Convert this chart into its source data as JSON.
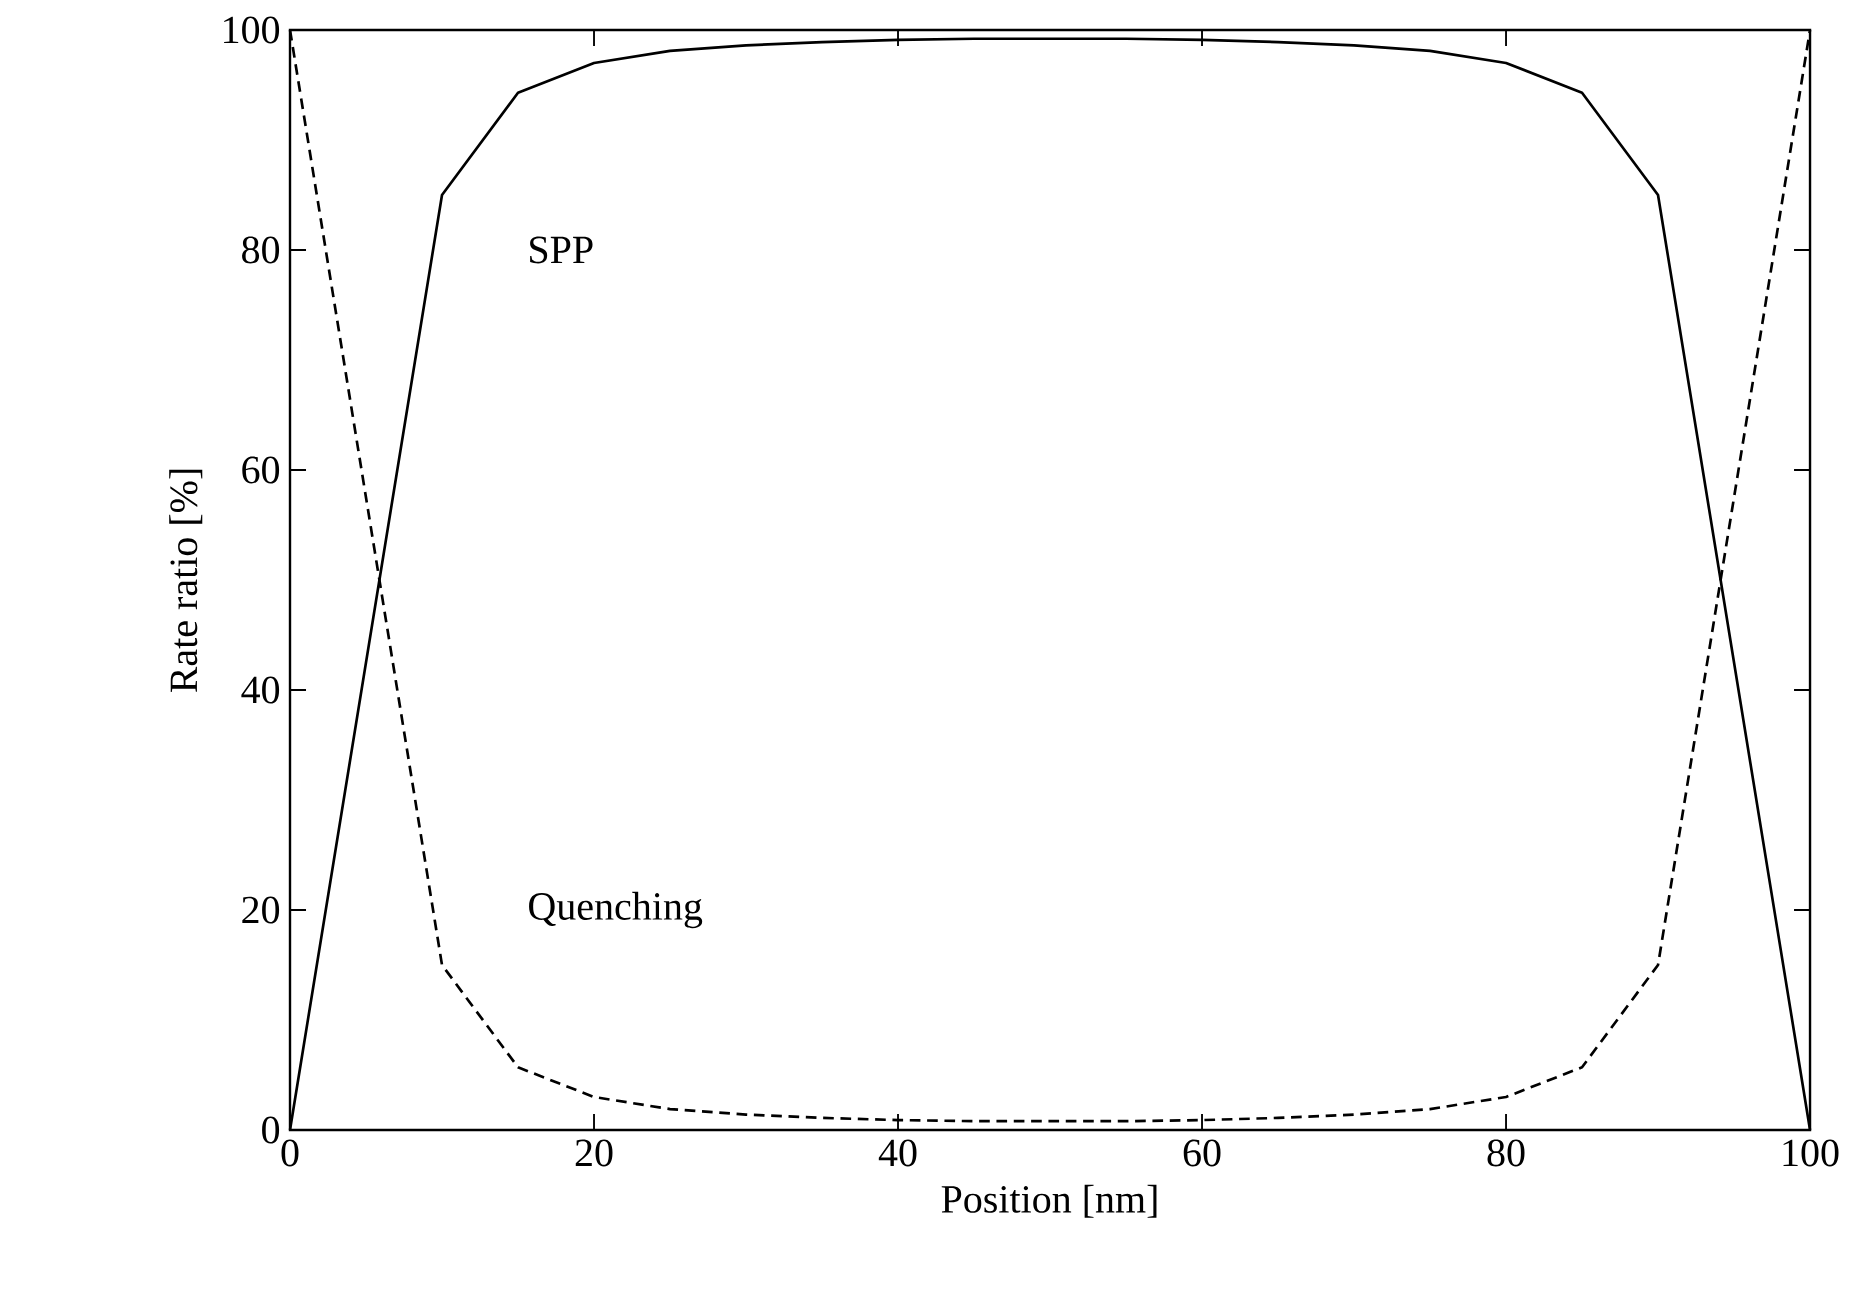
{
  "chart_data": {
    "type": "line",
    "xlabel": "Position [nm]",
    "ylabel": "Rate ratio [%]",
    "xlim": [
      0,
      100
    ],
    "ylim": [
      0,
      100
    ],
    "xticks": [
      0,
      20,
      40,
      60,
      80,
      100
    ],
    "yticks": [
      0,
      20,
      40,
      60,
      80,
      100
    ],
    "grid": false,
    "legend": false,
    "marker": "none",
    "x": [
      0,
      10,
      15,
      20,
      25,
      30,
      35,
      40,
      45,
      50,
      55,
      60,
      65,
      70,
      75,
      80,
      85,
      90,
      100
    ],
    "series": [
      {
        "name": "SPP",
        "color": "#000000",
        "line_style": "solid",
        "values": [
          0,
          85,
          94.3,
          97,
          98.1,
          98.6,
          98.9,
          99.1,
          99.2,
          99.2,
          99.2,
          99.1,
          98.9,
          98.6,
          98.1,
          97,
          94.3,
          85,
          0
        ]
      },
      {
        "name": "Quenching",
        "color": "#000000",
        "line_style": "dashed",
        "values": [
          100,
          15,
          5.7,
          3,
          1.9,
          1.4,
          1.1,
          0.9,
          0.8,
          0.8,
          0.8,
          0.9,
          1.1,
          1.4,
          1.9,
          3,
          5.7,
          15,
          100
        ]
      }
    ]
  }
}
